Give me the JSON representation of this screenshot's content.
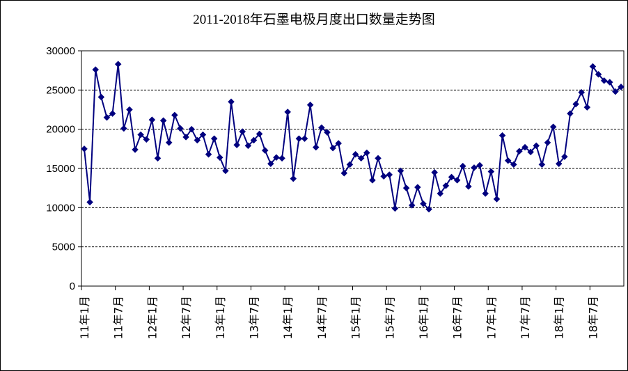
{
  "chart_data": {
    "type": "line",
    "title": "2011-2018年石墨电极月度出口数量走势图",
    "xlabel": "",
    "ylabel": "",
    "ylim": [
      0,
      30000
    ],
    "yticks": [
      0,
      5000,
      10000,
      15000,
      20000,
      25000,
      30000
    ],
    "grid": "horizontal-dashed",
    "legend": "none",
    "colors": {
      "series": "#00007f",
      "grid": "#000000",
      "axis": "#000000"
    },
    "x_tick_labels": [
      {
        "index": 0,
        "label": "11年1月"
      },
      {
        "index": 6,
        "label": "11年7月"
      },
      {
        "index": 12,
        "label": "12年1月"
      },
      {
        "index": 18,
        "label": "12年7月"
      },
      {
        "index": 24,
        "label": "13年1月"
      },
      {
        "index": 30,
        "label": "13年7月"
      },
      {
        "index": 36,
        "label": "14年1月"
      },
      {
        "index": 42,
        "label": "14年7月"
      },
      {
        "index": 48,
        "label": "15年1月"
      },
      {
        "index": 54,
        "label": "15年7月"
      },
      {
        "index": 60,
        "label": "16年1月"
      },
      {
        "index": 66,
        "label": "16年7月"
      },
      {
        "index": 72,
        "label": "17年1月"
      },
      {
        "index": 78,
        "label": "17年7月"
      },
      {
        "index": 84,
        "label": "18年1月"
      },
      {
        "index": 90,
        "label": "18年7月"
      }
    ],
    "series": [
      {
        "values": [
          17500,
          10700,
          27600,
          24100,
          21500,
          22000,
          28300,
          20100,
          22500,
          17400,
          19300,
          18700,
          21200,
          16300,
          21100,
          18300,
          21800,
          20100,
          19000,
          20000,
          18600,
          19300,
          16800,
          18800,
          16400,
          14700,
          23500,
          18000,
          19700,
          17900,
          18600,
          19400,
          17300,
          15600,
          16400,
          16300,
          22200,
          13700,
          18800,
          18800,
          23100,
          17700,
          20200,
          19600,
          17600,
          18200,
          14400,
          15500,
          16800,
          16300,
          17000,
          13500,
          16300,
          14000,
          14200,
          9900,
          14700,
          12500,
          10300,
          12600,
          10500,
          9800,
          14500,
          11800,
          12800,
          13900,
          13500,
          15300,
          12700,
          15100,
          15400,
          11800,
          14600,
          11100,
          19200,
          16000,
          15500,
          17200,
          17700,
          17100,
          17900,
          15500,
          18300,
          20300,
          15600,
          16500,
          22000,
          23200,
          24700,
          22800,
          28000,
          27000,
          26200,
          26000,
          24800,
          25400
        ]
      }
    ]
  }
}
